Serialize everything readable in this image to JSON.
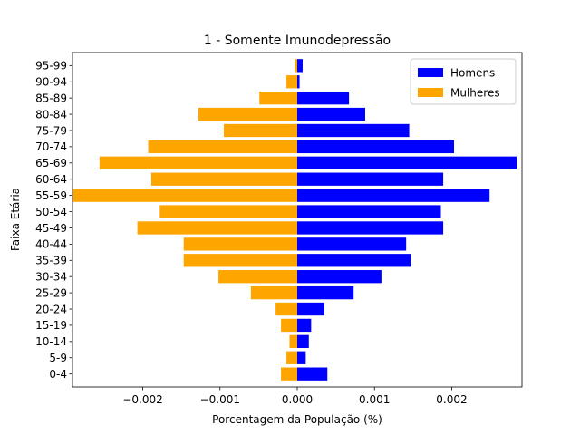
{
  "chart_data": {
    "type": "bar",
    "orientation": "horizontal",
    "title": "1 - Somente Imunodepressão",
    "xlabel": "Porcentagem da População (%)",
    "ylabel": "Faixa Etária",
    "categories": [
      "0-4",
      "5-9",
      "10-14",
      "15-19",
      "20-24",
      "25-29",
      "30-34",
      "35-39",
      "40-44",
      "45-49",
      "50-54",
      "55-59",
      "60-64",
      "65-69",
      "70-74",
      "75-79",
      "80-84",
      "85-89",
      "90-94",
      "95-99"
    ],
    "series": [
      {
        "name": "Homens",
        "color": "#0000ff",
        "values": [
          0.00039,
          0.00011,
          0.00015,
          0.00018,
          0.00035,
          0.00073,
          0.00109,
          0.00147,
          0.00141,
          0.00189,
          0.00186,
          0.00249,
          0.00189,
          0.00284,
          0.00203,
          0.00145,
          0.00088,
          0.00067,
          3e-05,
          7e-05
        ]
      },
      {
        "name": "Mulheres",
        "color": "#ffa500",
        "values": [
          -0.00021,
          -0.00014,
          -0.0001,
          -0.00021,
          -0.00028,
          -0.0006,
          -0.00102,
          -0.00147,
          -0.00147,
          -0.00207,
          -0.00178,
          -0.0029,
          -0.00189,
          -0.00256,
          -0.00193,
          -0.00095,
          -0.00128,
          -0.00049,
          -0.00014,
          -3e-05
        ]
      }
    ],
    "xlim": [
      -0.00291,
      0.00291
    ],
    "xticks": [
      -0.002,
      -0.001,
      0.0,
      0.001,
      0.002
    ],
    "xtick_labels": [
      "−0.002",
      "−0.001",
      "0.000",
      "0.001",
      "0.002"
    ],
    "legend_position": "top-right",
    "grid": false
  }
}
